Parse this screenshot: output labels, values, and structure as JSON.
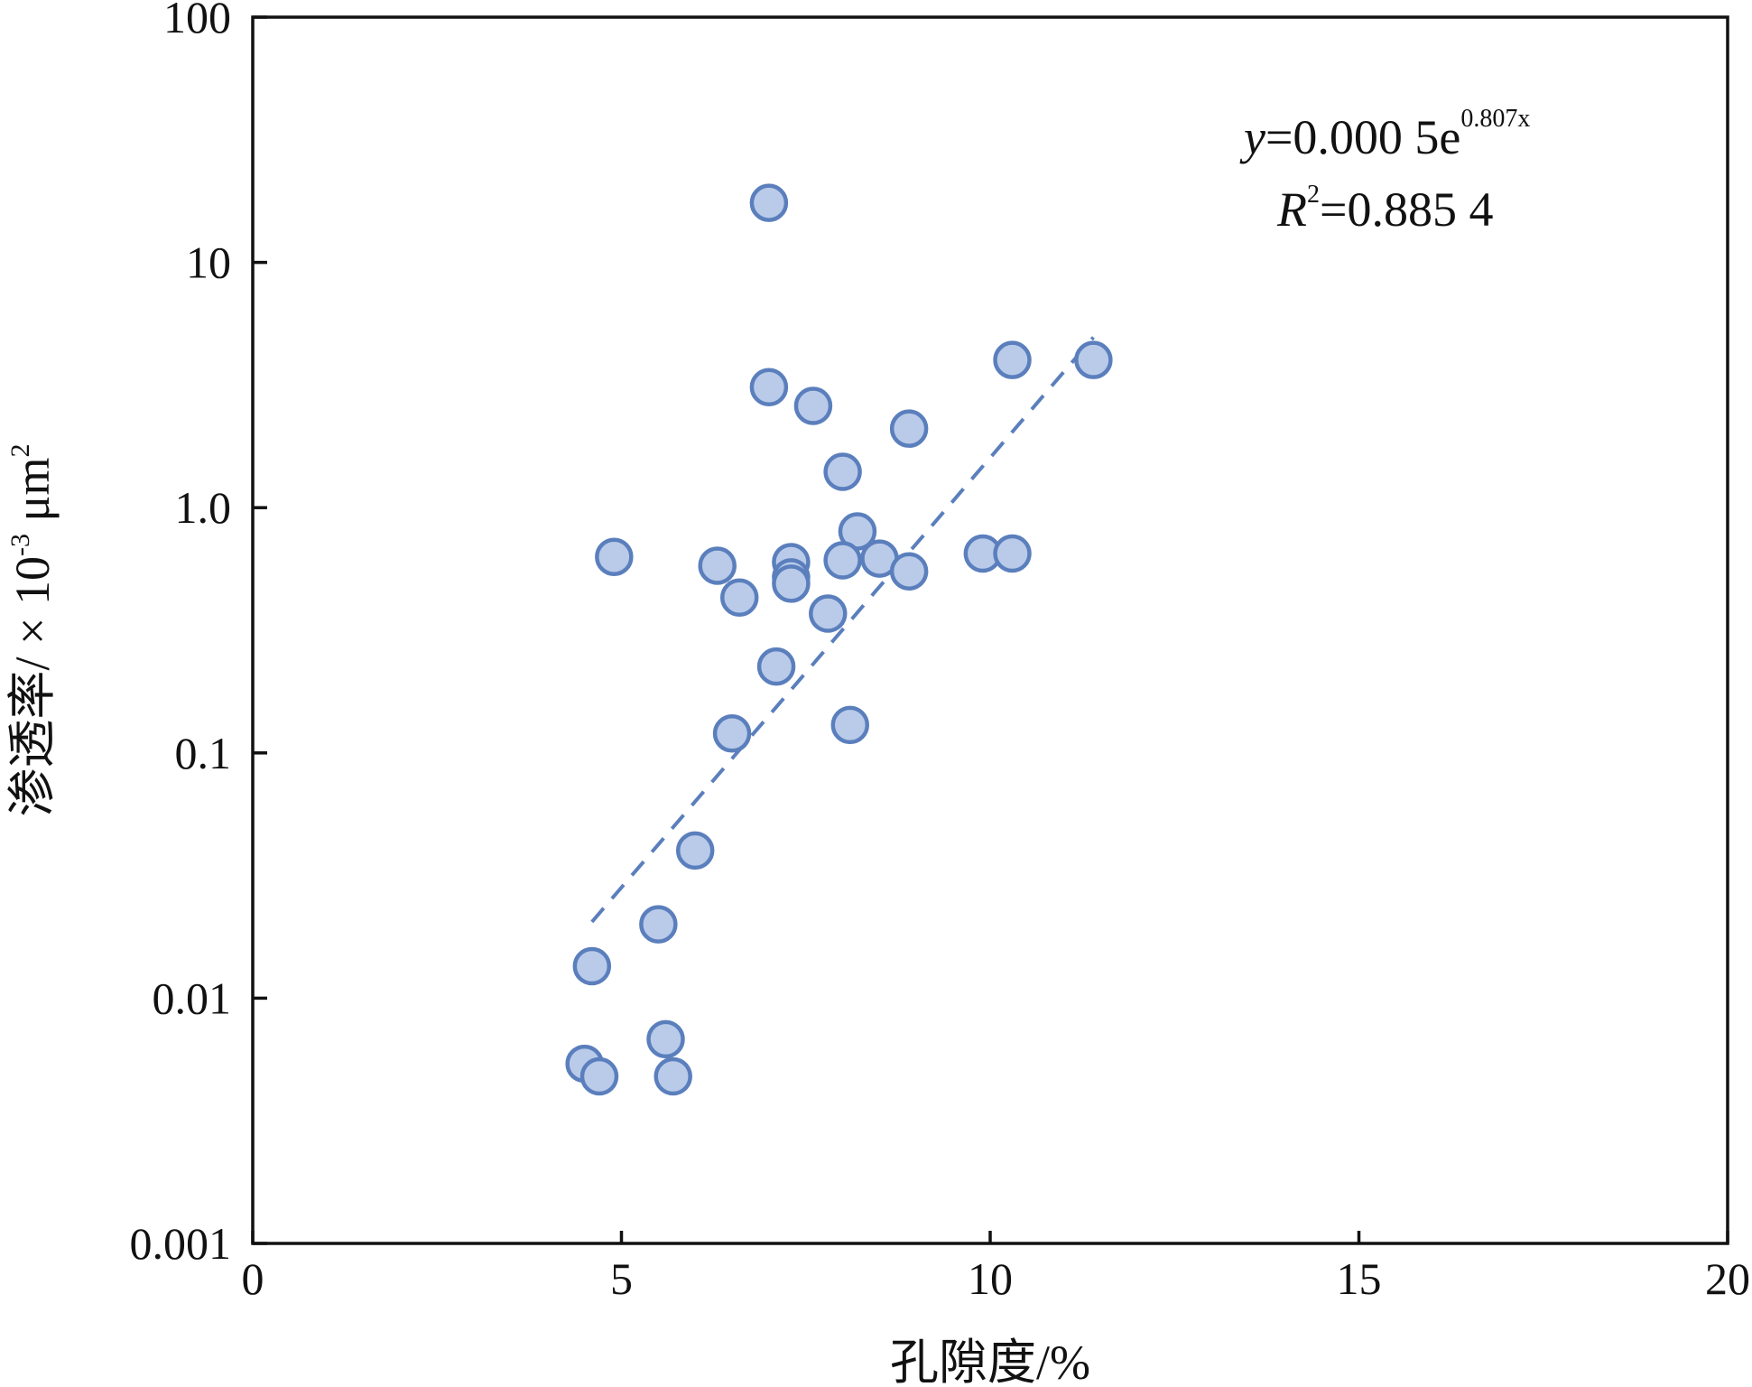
{
  "chart_data": {
    "type": "scatter",
    "title": "",
    "xlabel": "孔隙度/%",
    "ylabel_parts": {
      "prefix": "渗透率/ × 10",
      "exp": "-3",
      "unit_base": " μm",
      "unit_exp": "2"
    },
    "xlim": [
      0,
      20
    ],
    "ylim": [
      0.001,
      100
    ],
    "yscale": "log",
    "grid": false,
    "legend": "none",
    "x_ticks": [
      0,
      5,
      10,
      15,
      20
    ],
    "x_tick_labels": [
      "0",
      "5",
      "10",
      "15",
      "20"
    ],
    "y_ticks": [
      0.001,
      0.01,
      0.1,
      1,
      10,
      100
    ],
    "y_tick_labels": [
      "0.001",
      "0.01",
      "0.1",
      "1.0",
      "10",
      "100"
    ],
    "colors": {
      "marker_fill": "#b9cbe9",
      "marker_stroke": "#5b7fbd",
      "trend_line": "#5b7fbd",
      "axis": "#111111"
    },
    "points": [
      {
        "x": 7.0,
        "y": 17.5
      },
      {
        "x": 7.0,
        "y": 3.1
      },
      {
        "x": 7.6,
        "y": 2.6
      },
      {
        "x": 10.3,
        "y": 4.0
      },
      {
        "x": 11.4,
        "y": 4.0
      },
      {
        "x": 8.9,
        "y": 2.1
      },
      {
        "x": 8.0,
        "y": 1.4
      },
      {
        "x": 8.2,
        "y": 0.8
      },
      {
        "x": 4.9,
        "y": 0.63
      },
      {
        "x": 6.3,
        "y": 0.58
      },
      {
        "x": 6.6,
        "y": 0.43
      },
      {
        "x": 7.3,
        "y": 0.6
      },
      {
        "x": 7.3,
        "y": 0.52
      },
      {
        "x": 7.3,
        "y": 0.49
      },
      {
        "x": 8.0,
        "y": 0.61
      },
      {
        "x": 8.5,
        "y": 0.62
      },
      {
        "x": 8.9,
        "y": 0.55
      },
      {
        "x": 9.9,
        "y": 0.65
      },
      {
        "x": 10.3,
        "y": 0.65
      },
      {
        "x": 7.8,
        "y": 0.37
      },
      {
        "x": 7.1,
        "y": 0.225
      },
      {
        "x": 8.1,
        "y": 0.13
      },
      {
        "x": 6.5,
        "y": 0.12
      },
      {
        "x": 6.0,
        "y": 0.04
      },
      {
        "x": 5.5,
        "y": 0.02
      },
      {
        "x": 4.6,
        "y": 0.0135
      },
      {
        "x": 5.6,
        "y": 0.0068
      },
      {
        "x": 4.5,
        "y": 0.0054
      },
      {
        "x": 4.7,
        "y": 0.0048
      },
      {
        "x": 5.7,
        "y": 0.0048
      }
    ],
    "trendline": {
      "type": "exponential",
      "x_range": [
        4.6,
        11.4
      ],
      "coef_a": 0.0005,
      "coef_b": 0.807
    },
    "annotation": {
      "eq_y": "y",
      "eq_main": "=0.000 5e",
      "eq_exp": "0.807x",
      "r_var": "R",
      "r_exp": "2",
      "r_val": "=0.885 4"
    }
  }
}
